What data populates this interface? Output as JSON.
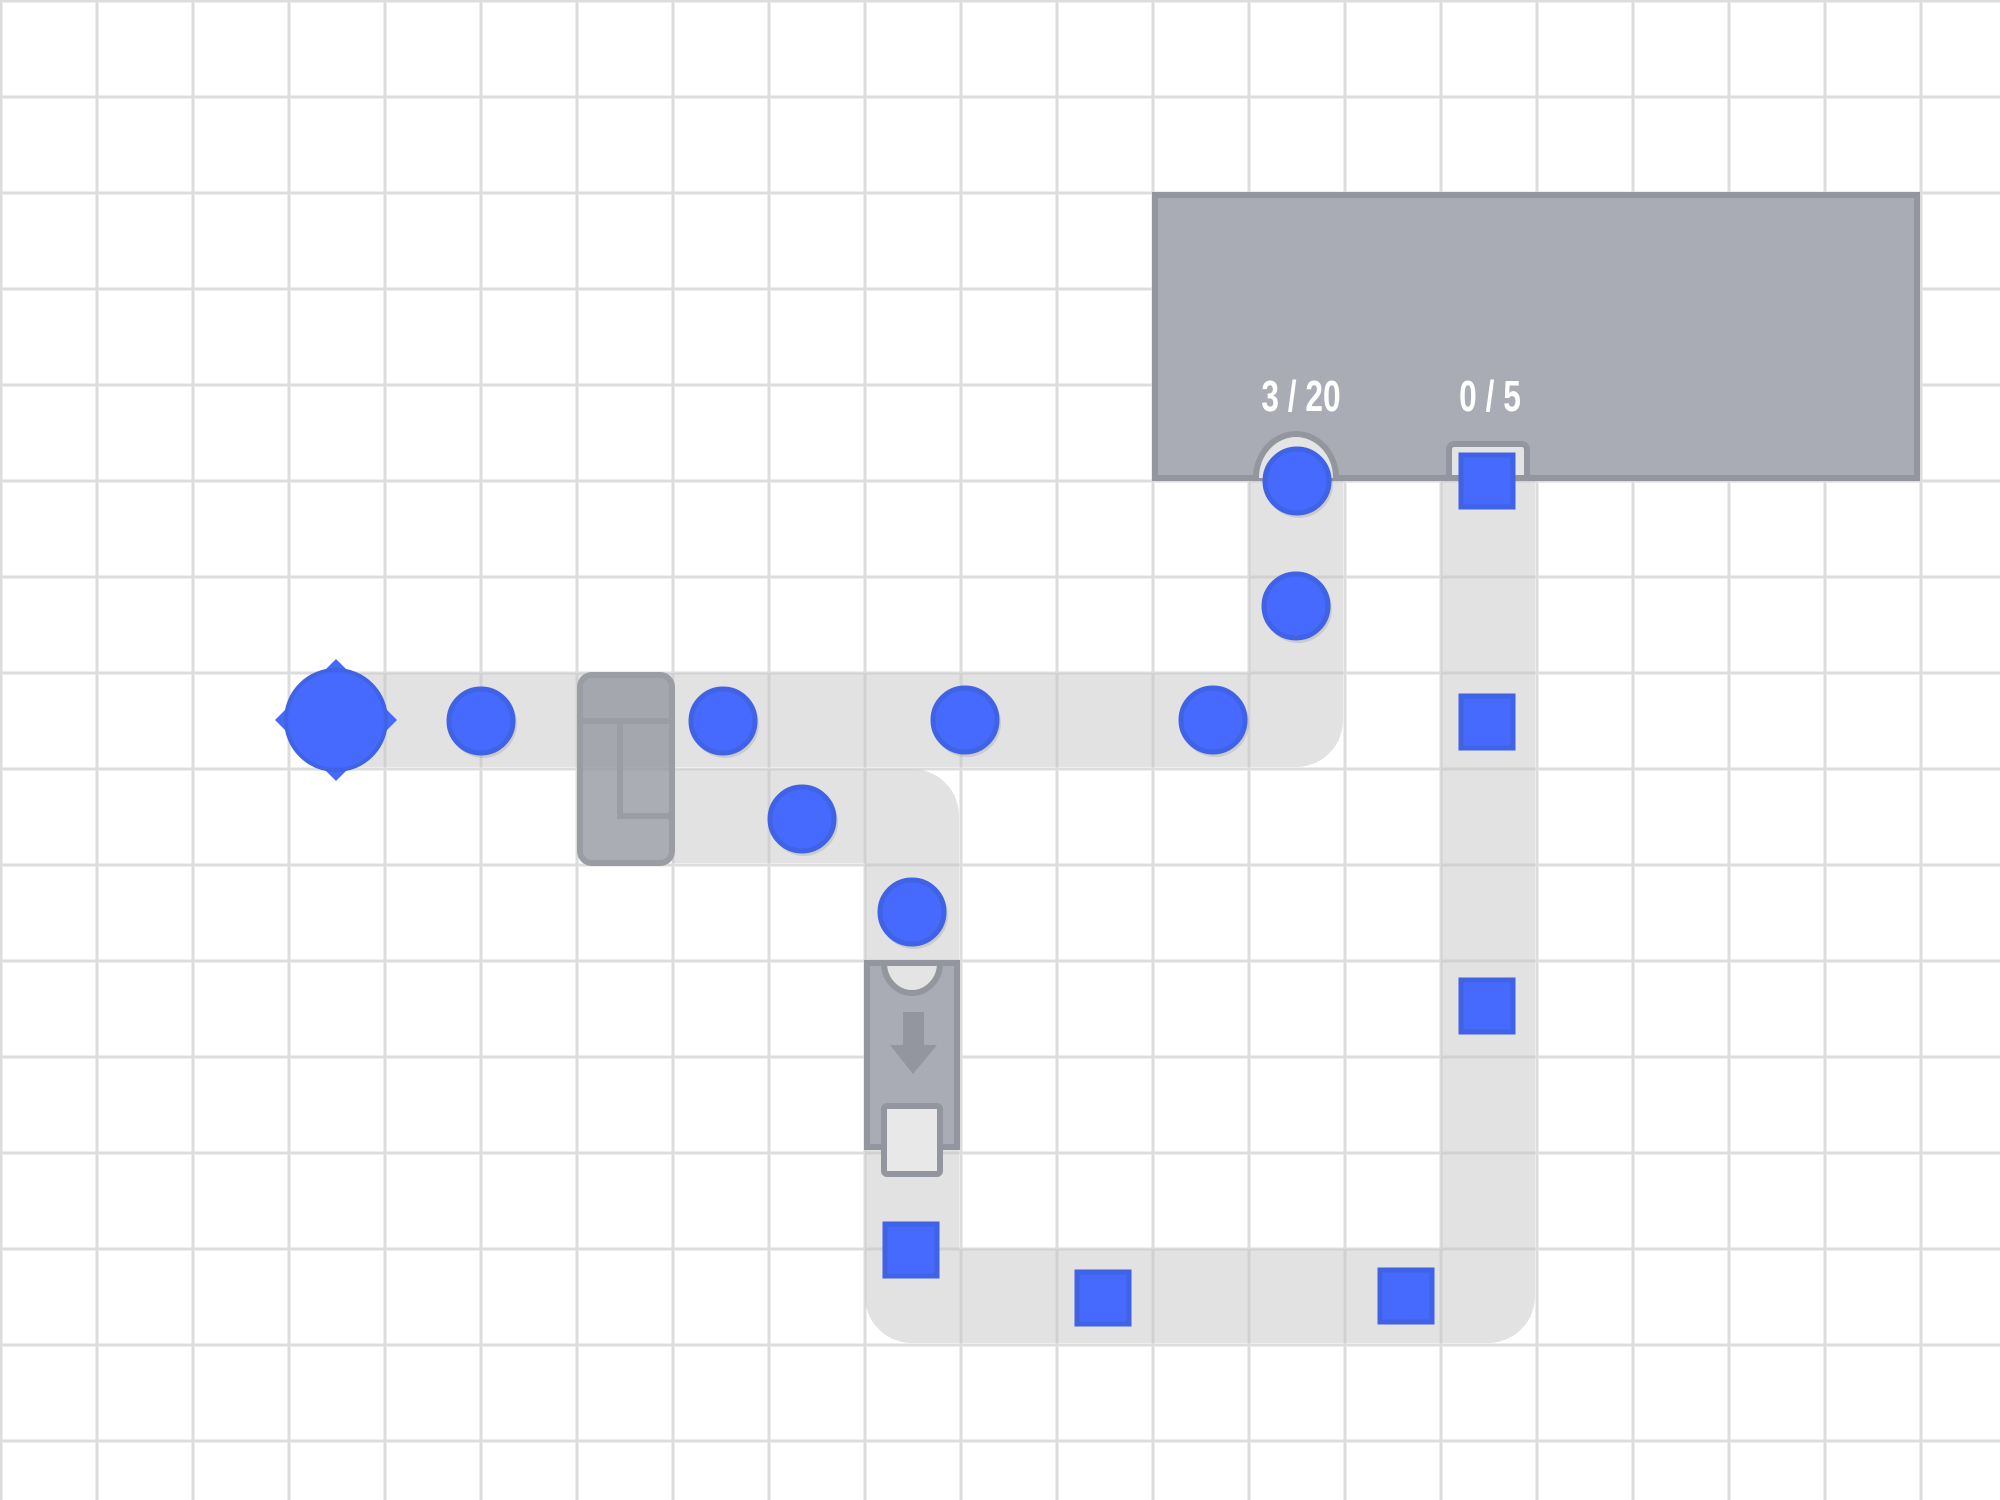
{
  "colors": {
    "grid": "#dcdcdc",
    "belt": "#e4e4e4",
    "building_fill": "#a9acb4",
    "building_border": "#93969e",
    "item_blue": "#4669fe",
    "item_blue_border": "#4063e6"
  },
  "building": {
    "counters": [
      {
        "label": "3 / 20",
        "item": "circle"
      },
      {
        "label": "0 / 5",
        "item": "square"
      }
    ]
  },
  "source_node": {
    "icon": "star-node-icon"
  },
  "splitter": {
    "icon": "splitter-icon"
  },
  "converter": {
    "icon": "arrow-down-icon"
  },
  "items": {
    "circles": 8,
    "squares": 6
  }
}
